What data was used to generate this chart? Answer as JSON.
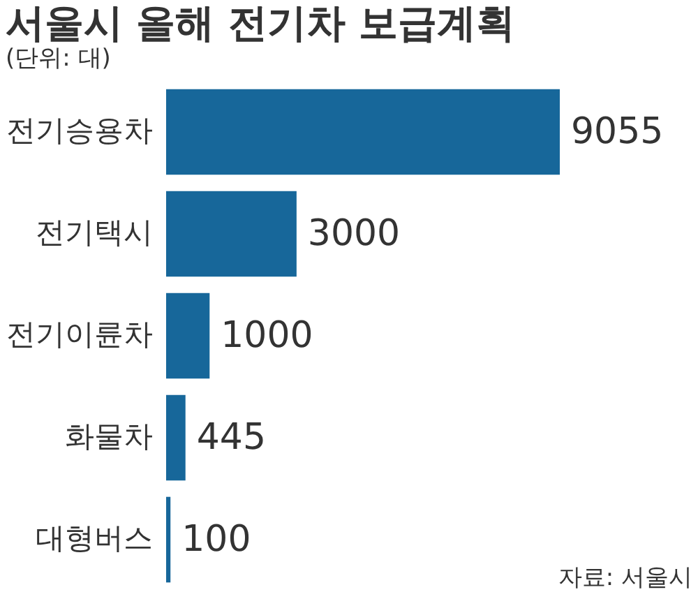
{
  "chart_data": {
    "type": "bar",
    "orientation": "horizontal",
    "title": "서울시 올해 전기차 보급계획",
    "subtitle": "(단위: 대)",
    "categories": [
      "전기승용차",
      "전기택시",
      "전기이륜차",
      "화물차",
      "대형버스"
    ],
    "values": [
      9055,
      3000,
      1000,
      445,
      100
    ],
    "color": "#17679a",
    "data_labels": true,
    "tick_labels": "y",
    "annotations": [
      "자료: 서울시"
    ]
  }
}
